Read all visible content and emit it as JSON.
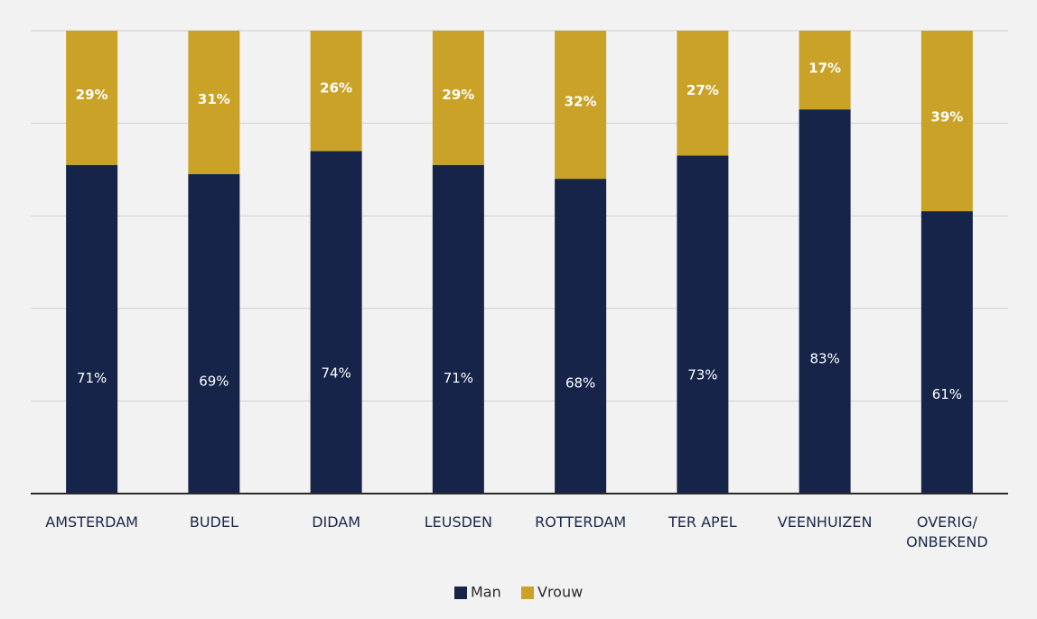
{
  "chart_data": {
    "type": "bar",
    "stacked": true,
    "percent": true,
    "categories": [
      [
        "AMSTERDAM"
      ],
      [
        "BUDEL"
      ],
      [
        "DIDAM"
      ],
      [
        "LEUSDEN"
      ],
      [
        "ROTTERDAM"
      ],
      [
        "TER APEL"
      ],
      [
        "VEENHUIZEN"
      ],
      [
        "OVERIG/",
        "ONBEKEND"
      ]
    ],
    "series": [
      {
        "name": "Man",
        "color": "#16244a",
        "values": [
          71,
          69,
          74,
          71,
          68,
          73,
          83,
          61
        ],
        "labels": [
          "71%",
          "69%",
          "74%",
          "71%",
          "68%",
          "73%",
          "83%",
          "61%"
        ]
      },
      {
        "name": "Vrouw",
        "color": "#c9a227",
        "values": [
          29,
          31,
          26,
          29,
          32,
          27,
          17,
          39
        ],
        "labels": [
          "29%",
          "31%",
          "26%",
          "29%",
          "32%",
          "27%",
          "17%",
          "39%"
        ]
      }
    ],
    "ylim": [
      0,
      100
    ],
    "grid": true,
    "legend": "bottom-center"
  }
}
